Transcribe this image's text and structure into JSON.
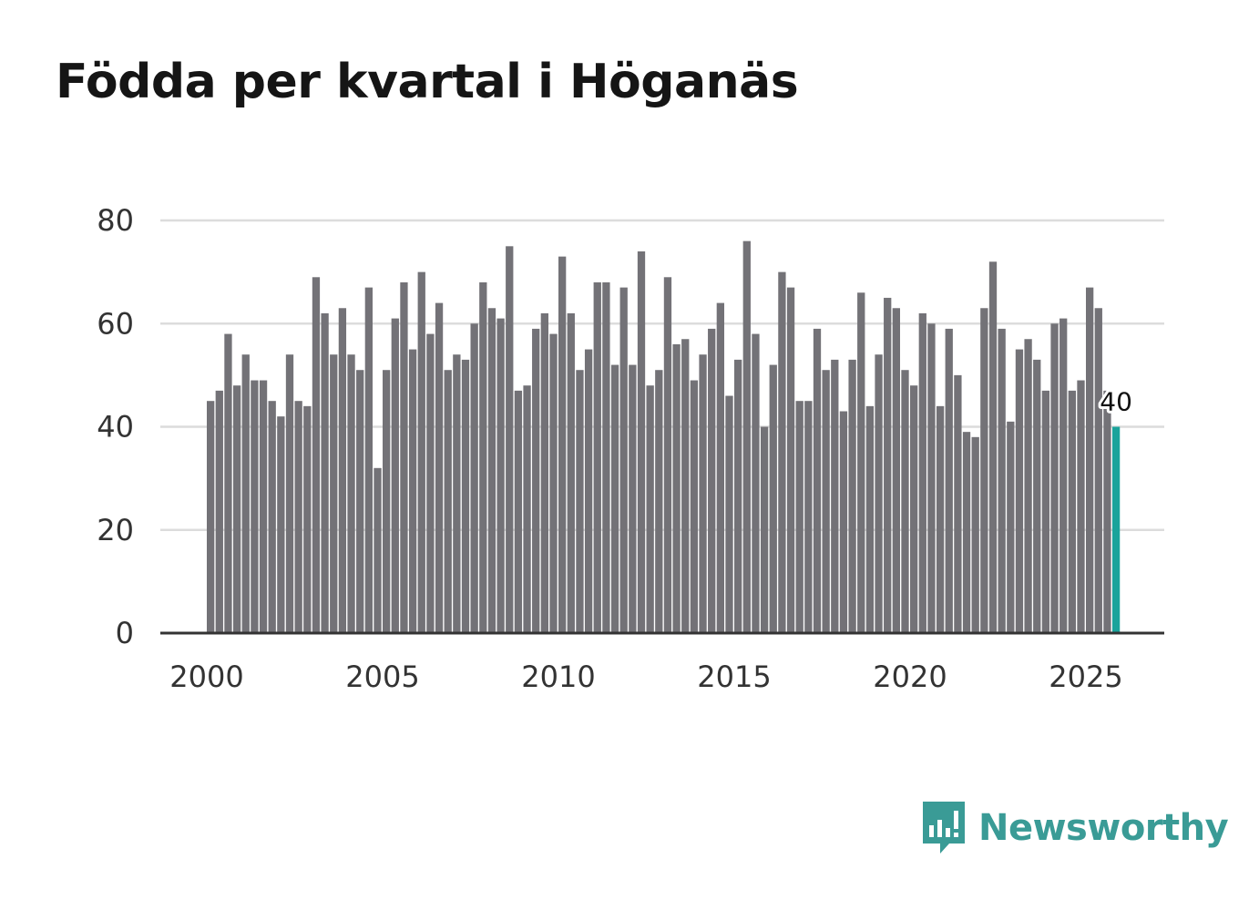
{
  "chart_data": {
    "type": "bar",
    "title": "Födda per kvartal i Höganäs",
    "xlabel": "",
    "ylabel": "",
    "ylim": [
      0,
      80
    ],
    "yticks": [
      "0",
      "20",
      "40",
      "60",
      "80"
    ],
    "xticks": [
      "2000",
      "2005",
      "2010",
      "2015",
      "2020",
      "2025"
    ],
    "grid": true,
    "start_year": 2000,
    "start_quarter": 1,
    "series": [
      {
        "name": "Födda",
        "color": "#737277",
        "highlight_color": "#1aa39b",
        "values": [
          45,
          47,
          58,
          48,
          54,
          49,
          49,
          45,
          42,
          54,
          45,
          44,
          69,
          62,
          54,
          63,
          54,
          51,
          67,
          32,
          51,
          61,
          68,
          55,
          70,
          58,
          64,
          51,
          54,
          53,
          60,
          68,
          63,
          61,
          75,
          47,
          48,
          59,
          62,
          58,
          73,
          62,
          51,
          55,
          68,
          68,
          52,
          67,
          52,
          74,
          48,
          51,
          69,
          56,
          57,
          49,
          54,
          59,
          64,
          46,
          53,
          76,
          58,
          40,
          52,
          70,
          67,
          45,
          45,
          59,
          51,
          53,
          43,
          53,
          66,
          44,
          54,
          65,
          63,
          51,
          48,
          62,
          60,
          44,
          59,
          50,
          39,
          38,
          63,
          72,
          59,
          41,
          55,
          57,
          53,
          47,
          60,
          61,
          47,
          49,
          67,
          63,
          47,
          40
        ]
      }
    ],
    "annotation": {
      "label": "40",
      "index": 103
    }
  },
  "brand": {
    "name": "Newsworthy",
    "color": "#3a9b96"
  }
}
